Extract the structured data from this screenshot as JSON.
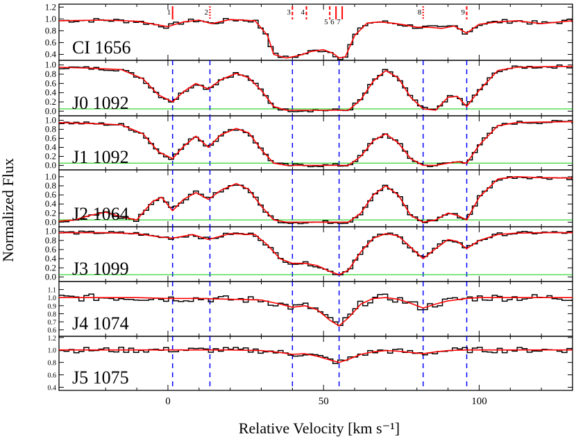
{
  "figure": {
    "ylabel": "Normalized Flux",
    "xlabel": "Relative Velocity  [km s⁻¹]"
  },
  "chart_data": {
    "type": "line",
    "xlim": [
      -35,
      130
    ],
    "x_ticks": [
      0,
      50,
      100
    ],
    "shared_components": {
      "labels": [
        "1",
        "2",
        "3",
        "4",
        "5",
        "6",
        "7",
        "8",
        "9"
      ],
      "velocities": [
        1.5,
        13.5,
        40,
        44.5,
        52,
        54,
        56,
        82,
        96
      ],
      "styles": [
        "solid",
        "dotted",
        "dashed",
        "dashed",
        "dashed",
        "solid",
        "solid",
        "dotted",
        "dashed"
      ],
      "dashed_guide_velocities": [
        1.5,
        13.5,
        40,
        55,
        82,
        96
      ]
    },
    "colors": {
      "data": "#000000",
      "model": "#ff0000",
      "error": "#00cc00",
      "guide": "#0000ff",
      "marker": "#ff0000"
    },
    "panels": [
      {
        "label": "CI 1656",
        "ylim": [
          0.3,
          1.25
        ],
        "yticks": [
          "0.4",
          "0.6",
          "0.8",
          "1.0",
          "1.2"
        ],
        "guides": false,
        "error_line": false,
        "component_markers": true,
        "continuum": 1.0,
        "x": [
          -35,
          -20,
          -10,
          0,
          5,
          10,
          14,
          20,
          28,
          32,
          34,
          38,
          42,
          46,
          50,
          53,
          55,
          57,
          60,
          64,
          68,
          72,
          76,
          80,
          84,
          88,
          92,
          96,
          100,
          106,
          112,
          120,
          130
        ],
        "model": [
          0.97,
          0.98,
          0.96,
          0.87,
          0.95,
          0.98,
          0.92,
          0.99,
          0.97,
          0.72,
          0.4,
          0.34,
          0.38,
          0.45,
          0.48,
          0.42,
          0.34,
          0.36,
          0.72,
          0.93,
          0.95,
          0.93,
          0.9,
          0.86,
          0.86,
          0.84,
          0.88,
          0.76,
          0.91,
          0.95,
          0.97,
          0.92,
          0.97
        ]
      },
      {
        "label": "J0 1092",
        "ylim": [
          -0.1,
          1.1
        ],
        "yticks": [
          "0.0",
          "0.2",
          "0.4",
          "0.6",
          "0.8",
          "1.0"
        ],
        "guides": true,
        "error_line": true,
        "error_level": 0.05,
        "x": [
          -35,
          -25,
          -15,
          -8,
          -3,
          1.5,
          5,
          9,
          13,
          17,
          22,
          26,
          30,
          34,
          38,
          42,
          50,
          58,
          62,
          66,
          70,
          74,
          78,
          82,
          86,
          90,
          93,
          96,
          100,
          106,
          112,
          120,
          130
        ],
        "model": [
          0.95,
          0.93,
          0.9,
          0.7,
          0.35,
          0.2,
          0.42,
          0.6,
          0.48,
          0.68,
          0.82,
          0.72,
          0.45,
          0.1,
          0.02,
          0.02,
          0.02,
          0.02,
          0.25,
          0.65,
          0.88,
          0.72,
          0.3,
          0.05,
          0.02,
          0.3,
          0.32,
          0.1,
          0.45,
          0.88,
          0.95,
          0.96,
          0.97
        ]
      },
      {
        "label": "J1 1092",
        "ylim": [
          -0.1,
          1.1
        ],
        "yticks": [
          "0.0",
          "0.2",
          "0.4",
          "0.6",
          "0.8",
          "1.0"
        ],
        "guides": true,
        "error_line": true,
        "error_level": 0.05,
        "x": [
          -35,
          -25,
          -15,
          -8,
          -3,
          1.5,
          5,
          9,
          13,
          17,
          22,
          26,
          30,
          34,
          38,
          42,
          50,
          58,
          62,
          66,
          70,
          74,
          78,
          82,
          86,
          90,
          93,
          96,
          100,
          106,
          112,
          120,
          130
        ],
        "model": [
          0.95,
          0.93,
          0.9,
          0.7,
          0.3,
          0.15,
          0.42,
          0.65,
          0.4,
          0.68,
          0.82,
          0.72,
          0.35,
          0.05,
          0.0,
          0.0,
          0.0,
          0.0,
          0.2,
          0.55,
          0.7,
          0.5,
          0.15,
          0.0,
          0.0,
          0.05,
          0.08,
          0.05,
          0.45,
          0.88,
          0.95,
          0.96,
          0.97
        ]
      },
      {
        "label": "J2 1064",
        "ylim": [
          -0.1,
          1.15
        ],
        "yticks": [
          "0.0",
          "0.2",
          "0.4",
          "0.6",
          "0.8",
          "1.0"
        ],
        "guides": true,
        "error_line": true,
        "error_level": 0.05,
        "x": [
          -35,
          -30,
          -25,
          -20,
          -15,
          -10,
          -5,
          -2,
          1.5,
          5,
          9,
          13,
          17,
          22,
          26,
          30,
          34,
          38,
          42,
          50,
          58,
          62,
          66,
          70,
          74,
          78,
          82,
          86,
          90,
          93,
          96,
          100,
          106,
          112,
          120,
          130
        ],
        "model": [
          0.02,
          0.05,
          0.15,
          0.22,
          0.12,
          0.05,
          0.45,
          0.55,
          0.25,
          0.5,
          0.65,
          0.5,
          0.7,
          0.85,
          0.72,
          0.35,
          0.05,
          0.0,
          0.0,
          0.0,
          0.0,
          0.2,
          0.6,
          0.8,
          0.6,
          0.15,
          0.0,
          0.05,
          0.2,
          0.15,
          0.05,
          0.55,
          0.95,
          1.0,
          0.98,
          0.97
        ]
      },
      {
        "label": "J3 1099",
        "ylim": [
          -0.1,
          1.1
        ],
        "yticks": [
          "0.0",
          "0.2",
          "0.4",
          "0.6",
          "0.8",
          "1.0"
        ],
        "guides": true,
        "error_line": true,
        "error_level": 0.05,
        "x": [
          -35,
          -20,
          -10,
          -3,
          1.5,
          8,
          13,
          20,
          28,
          32,
          36,
          40,
          44,
          48,
          52,
          55,
          58,
          62,
          66,
          70,
          74,
          78,
          82,
          86,
          90,
          93,
          96,
          100,
          106,
          112,
          120,
          130
        ],
        "model": [
          0.97,
          0.97,
          0.95,
          0.88,
          0.85,
          0.93,
          0.82,
          0.95,
          0.93,
          0.7,
          0.4,
          0.3,
          0.3,
          0.25,
          0.12,
          0.05,
          0.15,
          0.55,
          0.85,
          0.95,
          0.9,
          0.65,
          0.4,
          0.62,
          0.82,
          0.78,
          0.62,
          0.8,
          0.93,
          0.96,
          0.97,
          0.97
        ]
      },
      {
        "label": "J4 1074",
        "ylim": [
          0.52,
          1.2
        ],
        "yticks": [
          "0.6",
          "0.7",
          "0.8",
          "0.9",
          "1.0",
          "1.1"
        ],
        "guides": true,
        "error_line": false,
        "x": [
          -35,
          -10,
          0,
          10,
          20,
          30,
          36,
          40,
          44,
          48,
          52,
          55,
          58,
          62,
          66,
          70,
          74,
          78,
          82,
          86,
          90,
          96,
          100,
          110,
          130
        ],
        "model": [
          1.0,
          1.0,
          0.99,
          0.99,
          0.98,
          0.97,
          0.92,
          0.88,
          0.9,
          0.85,
          0.72,
          0.65,
          0.75,
          0.92,
          0.99,
          1.0,
          0.98,
          0.93,
          0.87,
          0.92,
          0.96,
          0.99,
          1.0,
          1.0,
          1.0
        ]
      },
      {
        "label": "J5 1075",
        "ylim": [
          0.35,
          1.22
        ],
        "yticks": [
          "0.4",
          "0.6",
          "0.8",
          "1.0",
          "1.2"
        ],
        "guides": true,
        "error_line": false,
        "x": [
          -35,
          -10,
          0,
          10,
          20,
          30,
          36,
          40,
          44,
          48,
          52,
          55,
          58,
          62,
          66,
          70,
          74,
          78,
          82,
          86,
          90,
          96,
          100,
          110,
          130
        ],
        "model": [
          1.0,
          1.0,
          1.0,
          1.0,
          1.0,
          0.99,
          0.96,
          0.93,
          0.94,
          0.9,
          0.84,
          0.8,
          0.85,
          0.93,
          0.97,
          0.99,
          0.98,
          0.96,
          0.94,
          0.97,
          0.99,
          1.0,
          1.0,
          1.0,
          1.0
        ]
      }
    ]
  }
}
